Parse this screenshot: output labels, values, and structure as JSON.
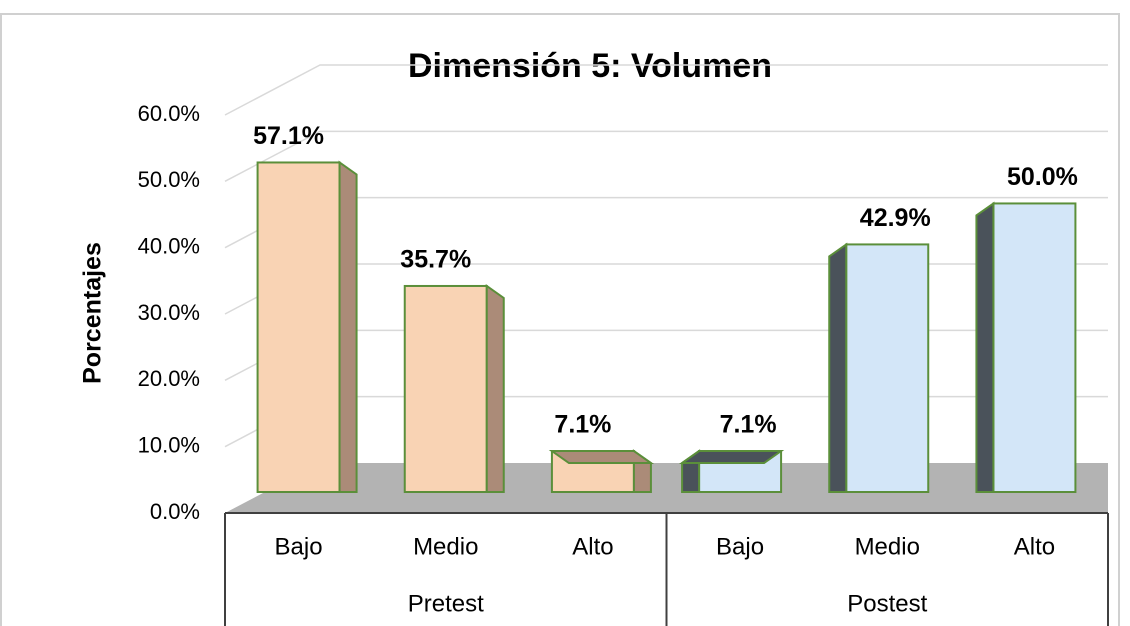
{
  "chart_data": {
    "type": "bar3d",
    "title": "Dimensión 5: Volumen",
    "y_label": "Porcentajes",
    "series": [
      {
        "name": "Pretest",
        "color": "#f9d3b4",
        "side_color": "#ab8b78",
        "categories": [
          "Bajo",
          "Medio",
          "Alto"
        ],
        "values": [
          57.1,
          35.7,
          7.1
        ],
        "value_labels": [
          "57.1%",
          "35.7%",
          "7.1%"
        ]
      },
      {
        "name": "Postest",
        "color": "#d3e6f8",
        "side_color": "#4a525a",
        "categories": [
          "Bajo",
          "Medio",
          "Alto"
        ],
        "values": [
          7.1,
          42.9,
          50.0
        ],
        "value_labels": [
          "7.1%",
          "42.9%",
          "50.0%"
        ]
      }
    ],
    "ylim": [
      0,
      60
    ],
    "yticks": [
      {
        "value": 0,
        "label": "0.0%"
      },
      {
        "value": 10,
        "label": "10.0%"
      },
      {
        "value": 20,
        "label": "20.0%"
      },
      {
        "value": 30,
        "label": "30.0%"
      },
      {
        "value": 40,
        "label": "40.0%"
      },
      {
        "value": 50,
        "label": "50.0%"
      },
      {
        "value": 60,
        "label": "60.0%"
      }
    ],
    "grid": true
  }
}
